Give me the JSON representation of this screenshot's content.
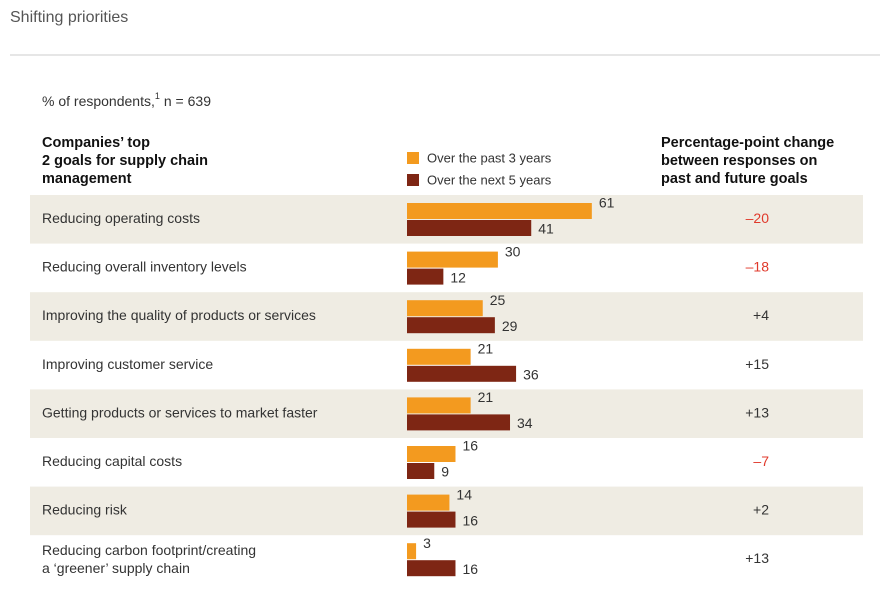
{
  "chart_data": {
    "type": "grouped-hbar",
    "title": "Shifting priorities",
    "subtitle": "% of respondents,",
    "subtitle_note": "1",
    "subtitle_n": "n = 639",
    "category_header": [
      "Companies’ top",
      "2 goals for supply chain",
      "management"
    ],
    "change_header": [
      "Percentage-point change",
      "between responses on",
      "past and future goals"
    ],
    "categories": [
      "Reducing operating costs",
      "Reducing overall inventory levels",
      "Improving the quality of products or services",
      "Improving customer service",
      "Getting products or services to market faster",
      "Reducing capital costs",
      "Reducing risk",
      [
        "Reducing carbon footprint/creating",
        "a ‘greener’ supply chain"
      ]
    ],
    "series": [
      {
        "name": "Over the past 3 years",
        "color": "#f39a1f",
        "values": [
          61,
          30,
          25,
          21,
          21,
          16,
          14,
          3
        ]
      },
      {
        "name": "Over the next 5 years",
        "color": "#7e2614",
        "values": [
          41,
          12,
          29,
          36,
          34,
          9,
          16,
          16
        ]
      }
    ],
    "changes": {
      "values": [
        -20,
        -18,
        4,
        15,
        13,
        -7,
        2,
        13
      ],
      "value_labels": [
        "–20",
        "–18",
        "+4",
        "+15",
        "+13",
        "–7",
        "+2",
        "+13"
      ],
      "negative_color": "#e0392b",
      "positive_color": "#333333"
    },
    "row_shading": "#efece3"
  }
}
